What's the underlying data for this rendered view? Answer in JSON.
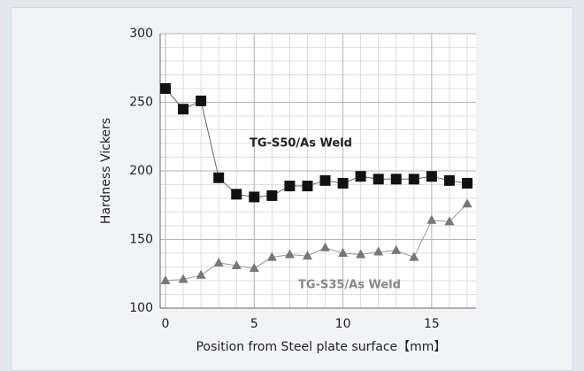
{
  "chart_data": {
    "type": "line",
    "xlabel": "Position from Steel plate surface【mm】",
    "ylabel": "Hardness Vickers",
    "x": [
      0,
      1,
      2,
      3,
      4,
      5,
      6,
      7,
      8,
      9,
      10,
      11,
      12,
      13,
      14,
      15,
      16,
      17
    ],
    "series": [
      {
        "name": "TG-S50/As Weld",
        "color": "#111111",
        "marker": "square",
        "values": [
          260,
          245,
          251,
          195,
          183,
          181,
          182,
          189,
          189,
          193,
          191,
          196,
          194,
          194,
          194,
          196,
          193,
          191
        ]
      },
      {
        "name": "TG-S35/As Weld",
        "color": "#777777",
        "marker": "triangle",
        "values": [
          120,
          121,
          124,
          133,
          131,
          129,
          137,
          139,
          138,
          144,
          140,
          139,
          141,
          142,
          137,
          164,
          163,
          176
        ]
      }
    ],
    "xlim": [
      -0.3,
      17.5
    ],
    "xticks": [
      0,
      5,
      10,
      15
    ],
    "ylim": [
      100,
      300
    ],
    "yticks": [
      100,
      150,
      200,
      250,
      300
    ],
    "grid": true
  }
}
